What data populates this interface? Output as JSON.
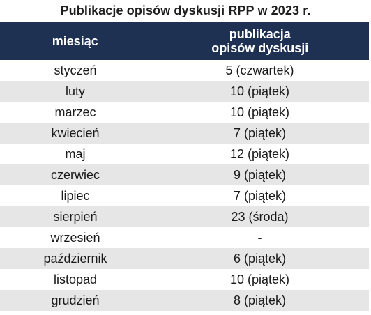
{
  "title": "Publikacje opisów dyskusji RPP w 2023 r.",
  "header": {
    "col1": "miesiąc",
    "col2_line1": "publikacja",
    "col2_line2": "opisów dyskusji"
  },
  "colors": {
    "header_bg": "#1f3153",
    "stripe": "#e6e6e6"
  },
  "rows": [
    {
      "month": "styczeń",
      "publication": "5 (czwartek)"
    },
    {
      "month": "luty",
      "publication": "10 (piątek)"
    },
    {
      "month": "marzec",
      "publication": "10 (piątek)"
    },
    {
      "month": "kwiecień",
      "publication": "7 (piątek)"
    },
    {
      "month": "maj",
      "publication": "12 (piątek)"
    },
    {
      "month": "czerwiec",
      "publication": "9 (piątek)"
    },
    {
      "month": "lipiec",
      "publication": "7 (piątek)"
    },
    {
      "month": "sierpień",
      "publication": "23 (środa)"
    },
    {
      "month": "wrzesień",
      "publication": "-"
    },
    {
      "month": "październik",
      "publication": "6 (piątek)"
    },
    {
      "month": "listopad",
      "publication": "10 (piątek)"
    },
    {
      "month": "grudzień",
      "publication": "8 (piątek)"
    }
  ]
}
